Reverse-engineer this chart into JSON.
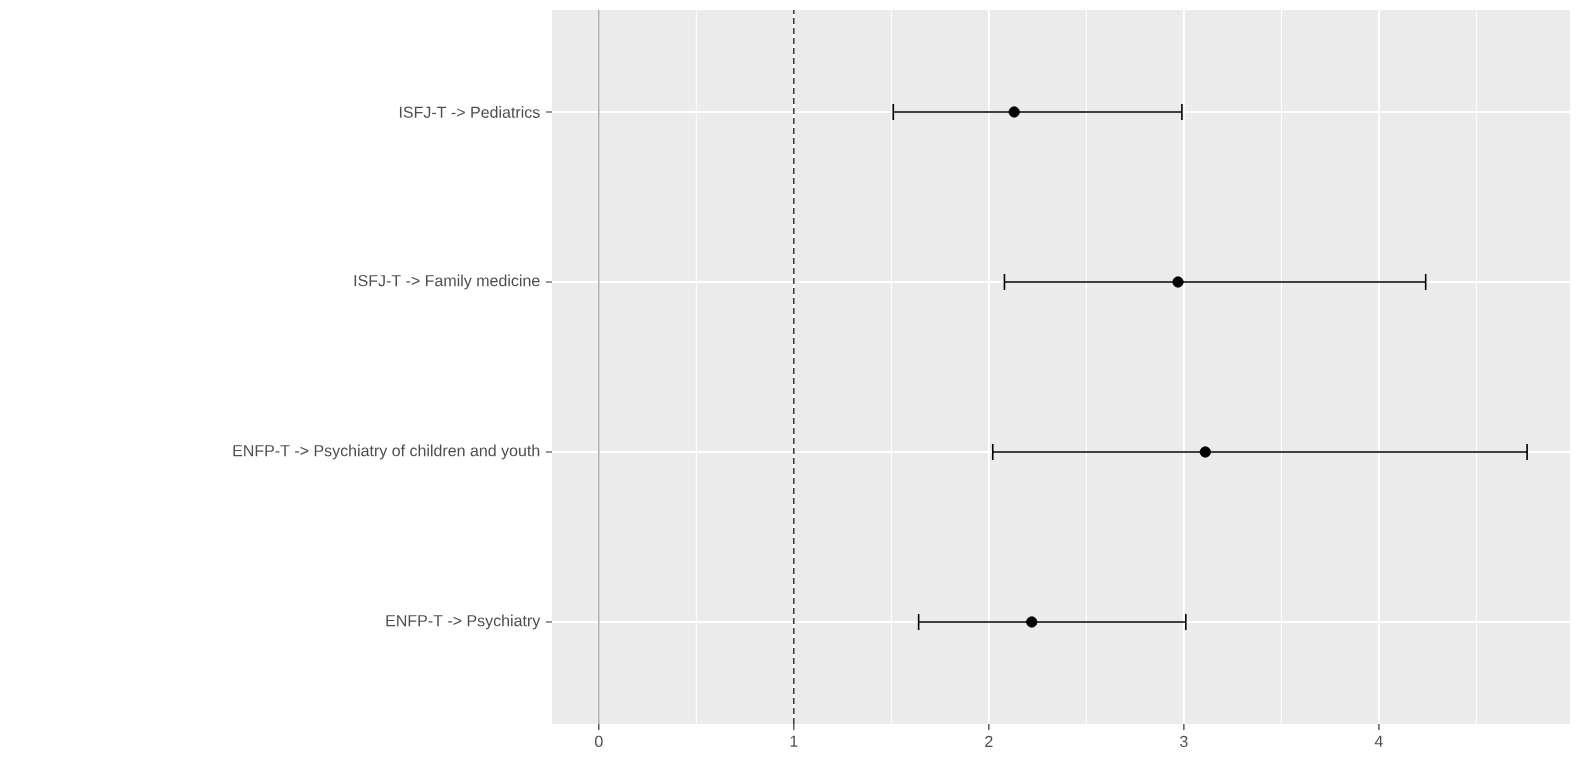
{
  "chart_data": {
    "type": "scatter",
    "orientation": "horizontal",
    "categories": [
      "ISFJ-T -> Pediatrics",
      "ISFJ-T -> Family medicine",
      "ENFP-T -> Psychiatry of children and youth",
      "ENFP-T -> Psychiatry"
    ],
    "values": [
      2.13,
      2.97,
      3.11,
      2.22
    ],
    "errors": [
      [
        1.51,
        2.99
      ],
      [
        2.08,
        4.24
      ],
      [
        2.02,
        4.76
      ],
      [
        1.64,
        3.01
      ]
    ],
    "color": "#000000",
    "marker": "circle",
    "xlim": [
      -0.24,
      4.98
    ],
    "xticks": [
      0,
      1,
      2,
      3,
      4
    ],
    "ref_lines": [
      {
        "axis": "x",
        "value": 0,
        "color": "#999999",
        "line_style": "solid"
      },
      {
        "axis": "x",
        "value": 1,
        "color": "#000000",
        "line_style": "dashed"
      }
    ],
    "grid": true
  }
}
